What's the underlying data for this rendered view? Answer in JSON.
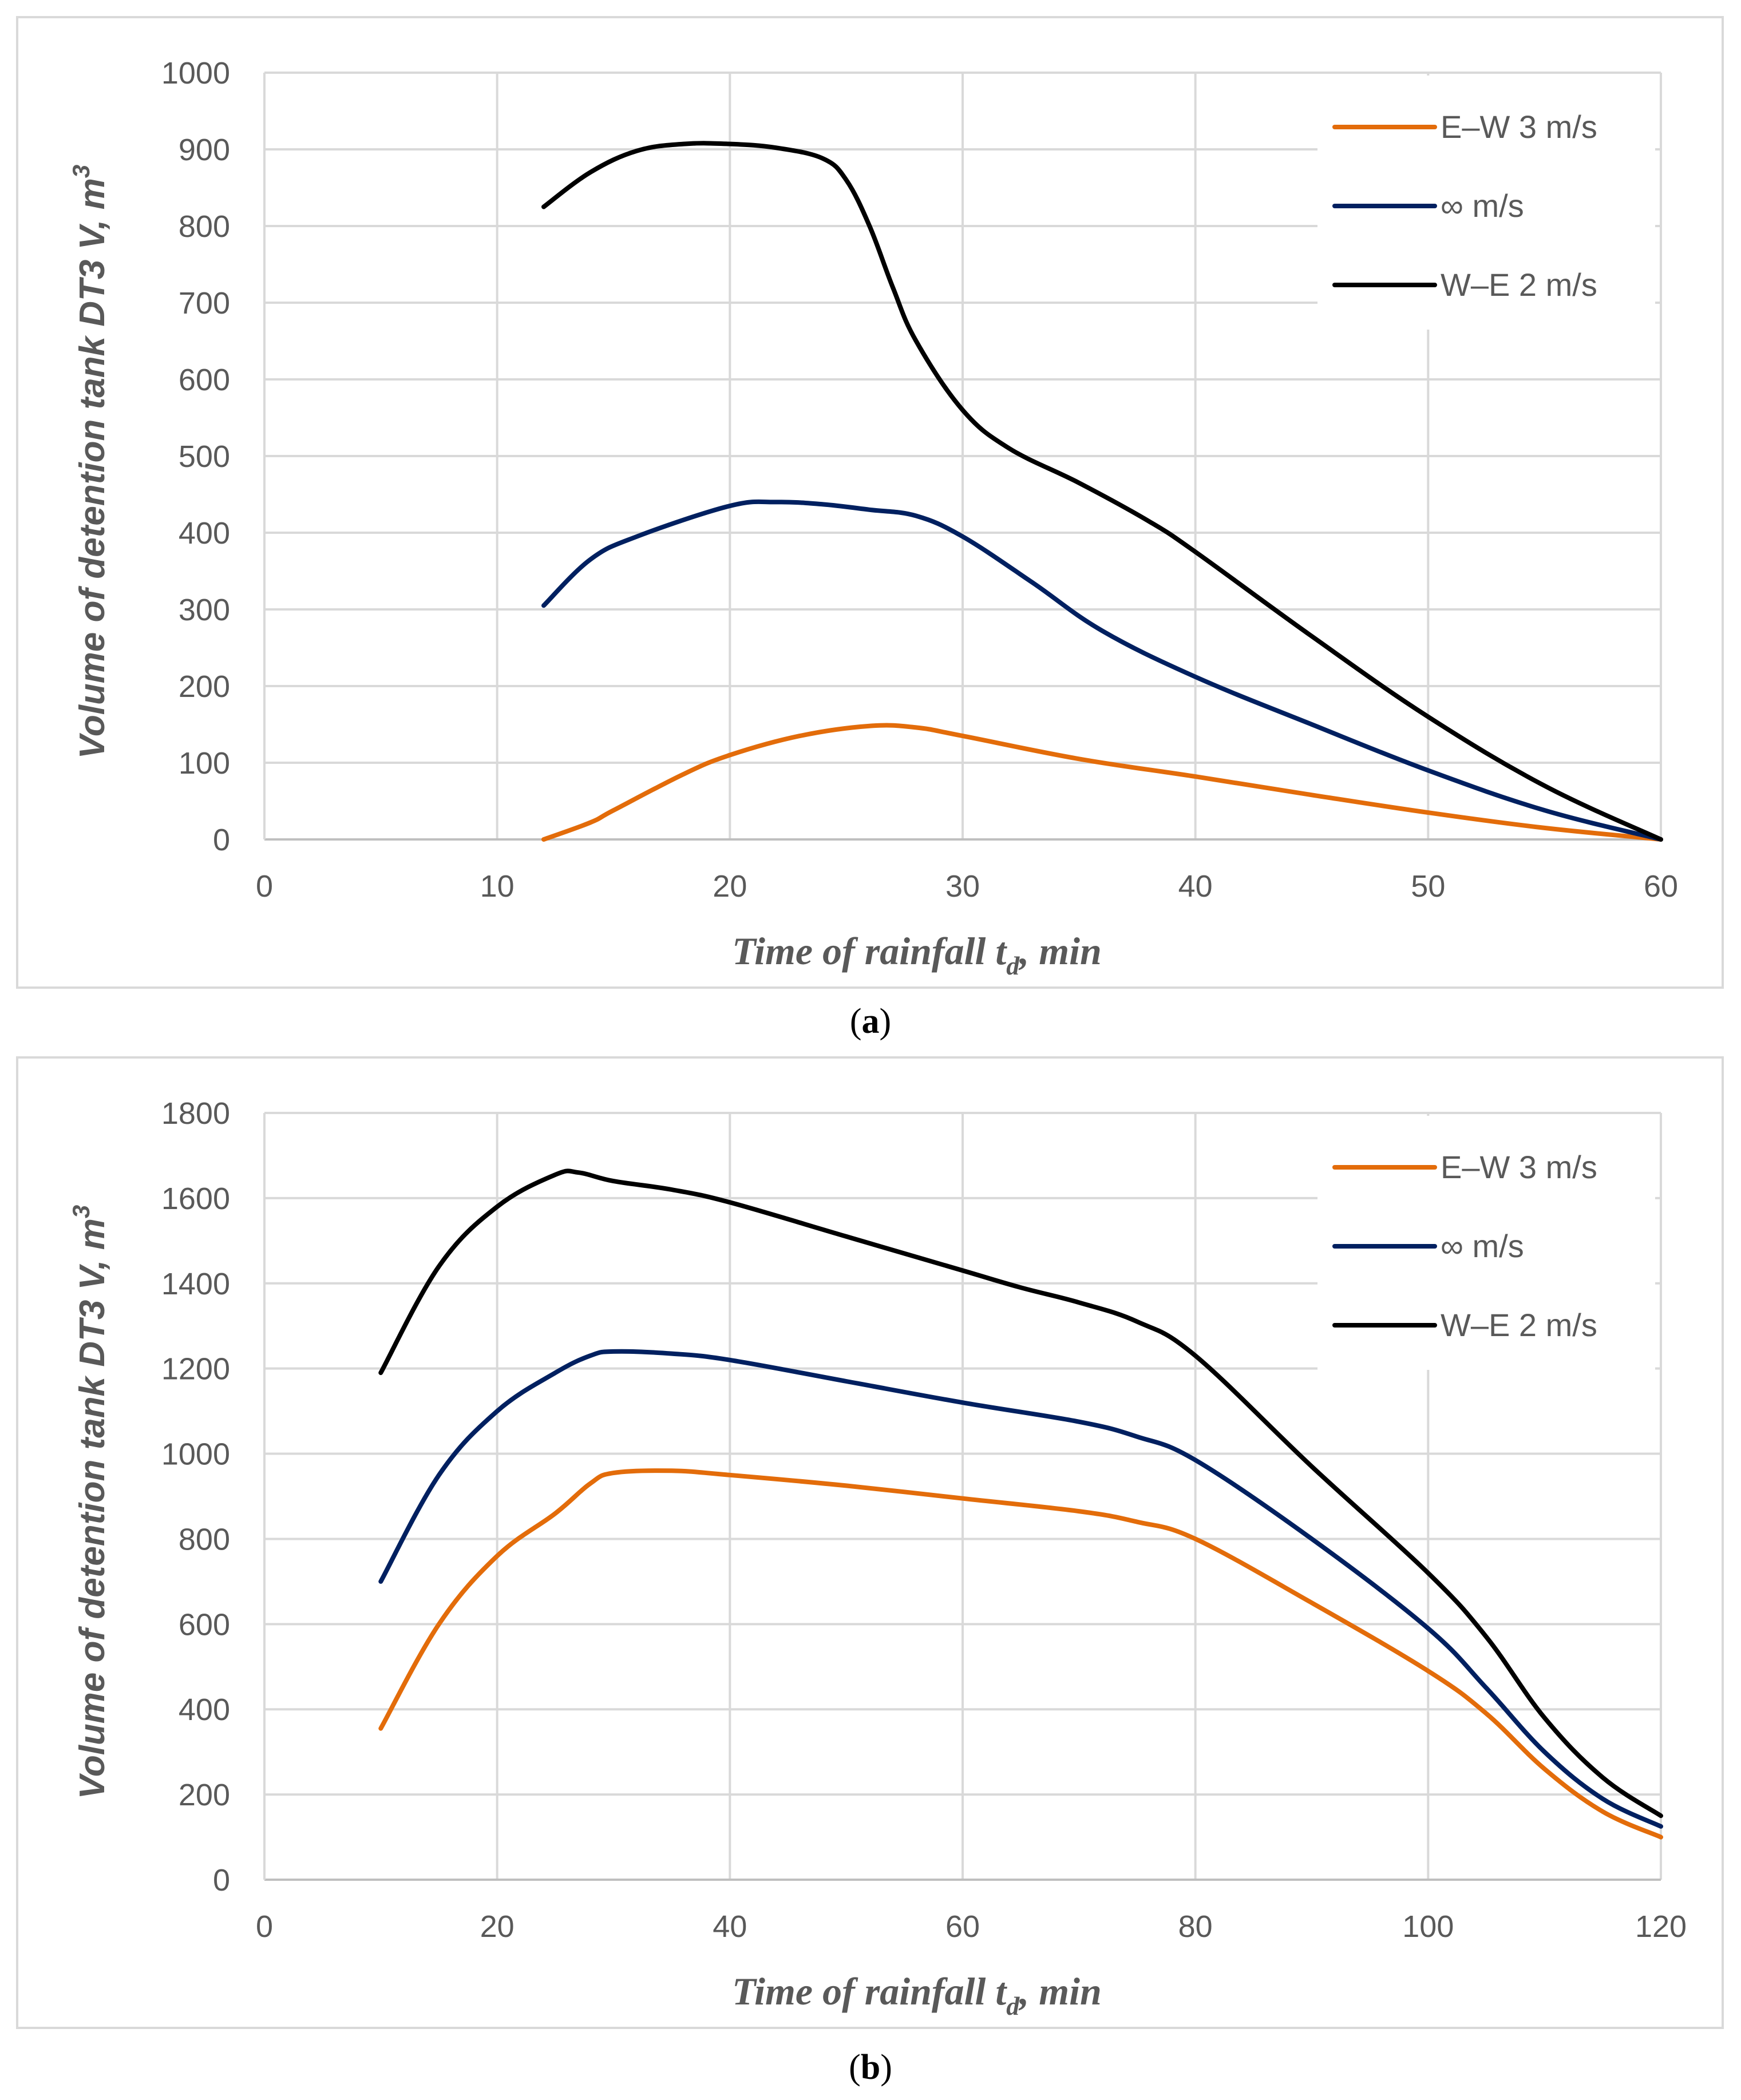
{
  "chart_data": [
    {
      "type": "line",
      "panel_label": "a",
      "xlabel": "Time of rainfall t",
      "xlabel_sub": "d",
      "xlabel_suffix": ", min",
      "ylabel": "Volume of  detention tank DT3 V, m",
      "ylabel_sup": "3",
      "xlim": [
        0,
        60
      ],
      "ylim": [
        0,
        1000
      ],
      "xticks": [
        0,
        10,
        20,
        30,
        40,
        50,
        60
      ],
      "yticks": [
        0,
        100,
        200,
        300,
        400,
        500,
        600,
        700,
        800,
        900,
        1000
      ],
      "grid": true,
      "legend_position": "top-right",
      "series": [
        {
          "name": "E–W 3 m/s",
          "color": "#E36C0A",
          "x": [
            12,
            14,
            15,
            18,
            20,
            23,
            26,
            28,
            30,
            35,
            40,
            45,
            50,
            55,
            60
          ],
          "y": [
            0,
            22,
            38,
            85,
            110,
            135,
            148,
            146,
            135,
            105,
            82,
            58,
            35,
            15,
            0
          ]
        },
        {
          "name": "∞ m/s",
          "color": "#002060",
          "x": [
            12,
            14,
            16,
            20,
            22,
            24,
            26,
            28,
            30,
            33,
            36,
            40,
            45,
            50,
            55,
            60
          ],
          "y": [
            305,
            365,
            395,
            435,
            440,
            437,
            430,
            422,
            395,
            335,
            272,
            212,
            150,
            90,
            38,
            0
          ]
        },
        {
          "name": "W–E 2 m/s",
          "color": "#000000",
          "x": [
            12,
            14,
            16,
            18,
            20,
            22,
            24,
            25,
            26,
            27,
            28,
            30,
            32,
            35,
            38,
            40,
            45,
            50,
            55,
            60
          ],
          "y": [
            825,
            870,
            898,
            907,
            907,
            902,
            888,
            860,
            800,
            720,
            650,
            560,
            510,
            465,
            415,
            375,
            265,
            160,
            70,
            0
          ]
        }
      ]
    },
    {
      "type": "line",
      "panel_label": "b",
      "xlabel": "Time of rainfall t",
      "xlabel_sub": "d",
      "xlabel_suffix": ", min",
      "ylabel": "Volume of  detention tank DT3 V, m",
      "ylabel_sup": "3",
      "xlim": [
        0,
        120
      ],
      "ylim": [
        0,
        1800
      ],
      "xticks": [
        0,
        20,
        40,
        60,
        80,
        100,
        120
      ],
      "yticks": [
        0,
        200,
        400,
        600,
        800,
        1000,
        1200,
        1400,
        1600,
        1800
      ],
      "grid": true,
      "legend_position": "top-right",
      "series": [
        {
          "name": "E–W 3 m/s",
          "color": "#E36C0A",
          "x": [
            10,
            15,
            20,
            25,
            28,
            30,
            35,
            40,
            50,
            60,
            70,
            75,
            80,
            90,
            100,
            105,
            110,
            115,
            120
          ],
          "y": [
            355,
            600,
            760,
            860,
            930,
            955,
            960,
            950,
            925,
            895,
            865,
            840,
            800,
            650,
            490,
            390,
            260,
            160,
            100
          ]
        },
        {
          "name": "∞ m/s",
          "color": "#002060",
          "x": [
            10,
            15,
            20,
            25,
            28,
            30,
            35,
            40,
            50,
            60,
            70,
            75,
            80,
            90,
            100,
            105,
            110,
            115,
            120
          ],
          "y": [
            700,
            950,
            1100,
            1190,
            1230,
            1240,
            1235,
            1220,
            1170,
            1120,
            1075,
            1040,
            985,
            800,
            590,
            450,
            300,
            190,
            125
          ]
        },
        {
          "name": "W–E 2 m/s",
          "color": "#000000",
          "x": [
            10,
            15,
            20,
            25,
            27,
            30,
            35,
            40,
            50,
            60,
            65,
            70,
            75,
            80,
            90,
            100,
            105,
            110,
            115,
            120
          ],
          "y": [
            1190,
            1440,
            1580,
            1655,
            1660,
            1640,
            1620,
            1590,
            1510,
            1430,
            1390,
            1355,
            1310,
            1230,
            970,
            720,
            570,
            380,
            240,
            150
          ]
        }
      ]
    }
  ]
}
